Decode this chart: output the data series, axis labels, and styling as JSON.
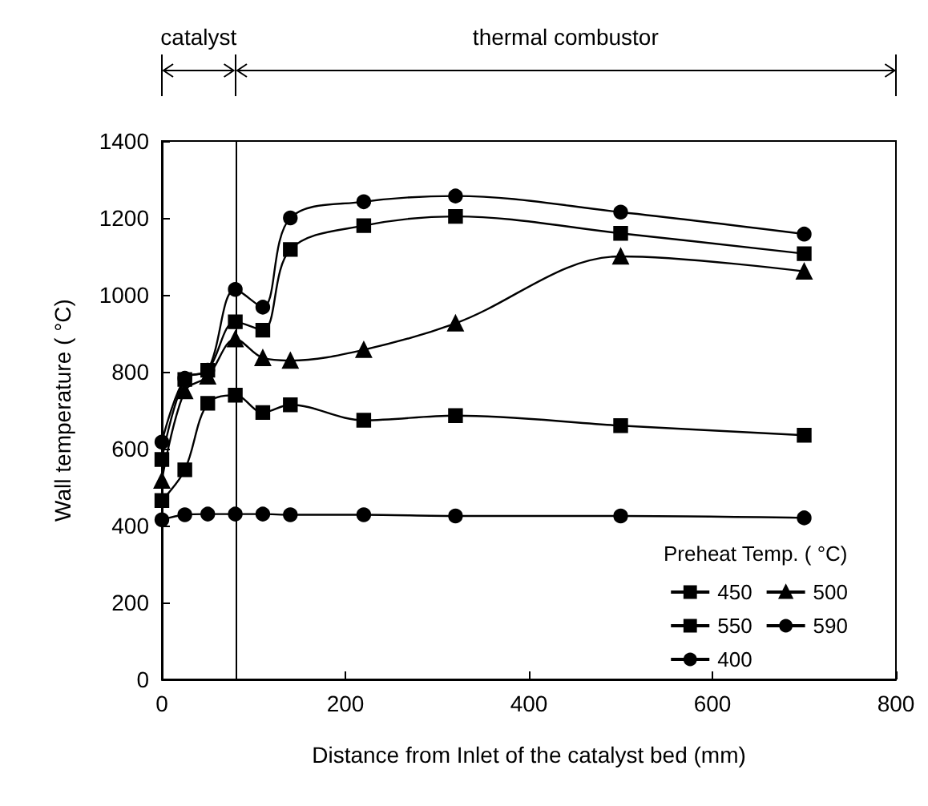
{
  "chart_data": {
    "type": "line",
    "xlabel": "Distance from Inlet of the catalyst bed (mm)",
    "ylabel": "Wall temperature ( °C)",
    "legend_title": "Preheat Temp. ( °C)",
    "annotations": [
      "catalyst",
      "thermal combustor"
    ],
    "x": [
      0,
      25,
      50,
      80,
      110,
      140,
      220,
      320,
      500,
      700
    ],
    "series": [
      {
        "name": "450",
        "color": "#000000",
        "marker": "square",
        "values": [
          465,
          545,
          718,
          739,
          694,
          714,
          674,
          686,
          660,
          635
        ]
      },
      {
        "name": "500",
        "color": "#000000",
        "marker": "triangle",
        "values": [
          517,
          750,
          788,
          885,
          836,
          829,
          857,
          926,
          1100,
          1061
        ]
      },
      {
        "name": "550",
        "color": "#000000",
        "marker": "square",
        "values": [
          572,
          780,
          804,
          930,
          908,
          1118,
          1180,
          1204,
          1160,
          1107
        ]
      },
      {
        "name": "590",
        "color": "#000000",
        "marker": "circle",
        "values": [
          617,
          783,
          804,
          1014,
          968,
          1200,
          1242,
          1257,
          1215,
          1158
        ]
      },
      {
        "name": "400",
        "color": "#000000",
        "marker": "circle",
        "values": [
          415,
          428,
          430,
          430,
          430,
          428,
          428,
          425,
          425,
          420
        ]
      }
    ],
    "xlim": [
      0,
      800
    ],
    "xticks": [
      0,
      200,
      400,
      600,
      800
    ],
    "ylim": [
      0,
      1400
    ],
    "yticks": [
      0,
      200,
      400,
      600,
      800,
      1000,
      1200,
      1400
    ],
    "ref_lines": [
      {
        "axis": "x",
        "value": 80,
        "color": "#000000"
      }
    ],
    "grid": false,
    "legend": "bottom right",
    "line_style": "solid"
  }
}
